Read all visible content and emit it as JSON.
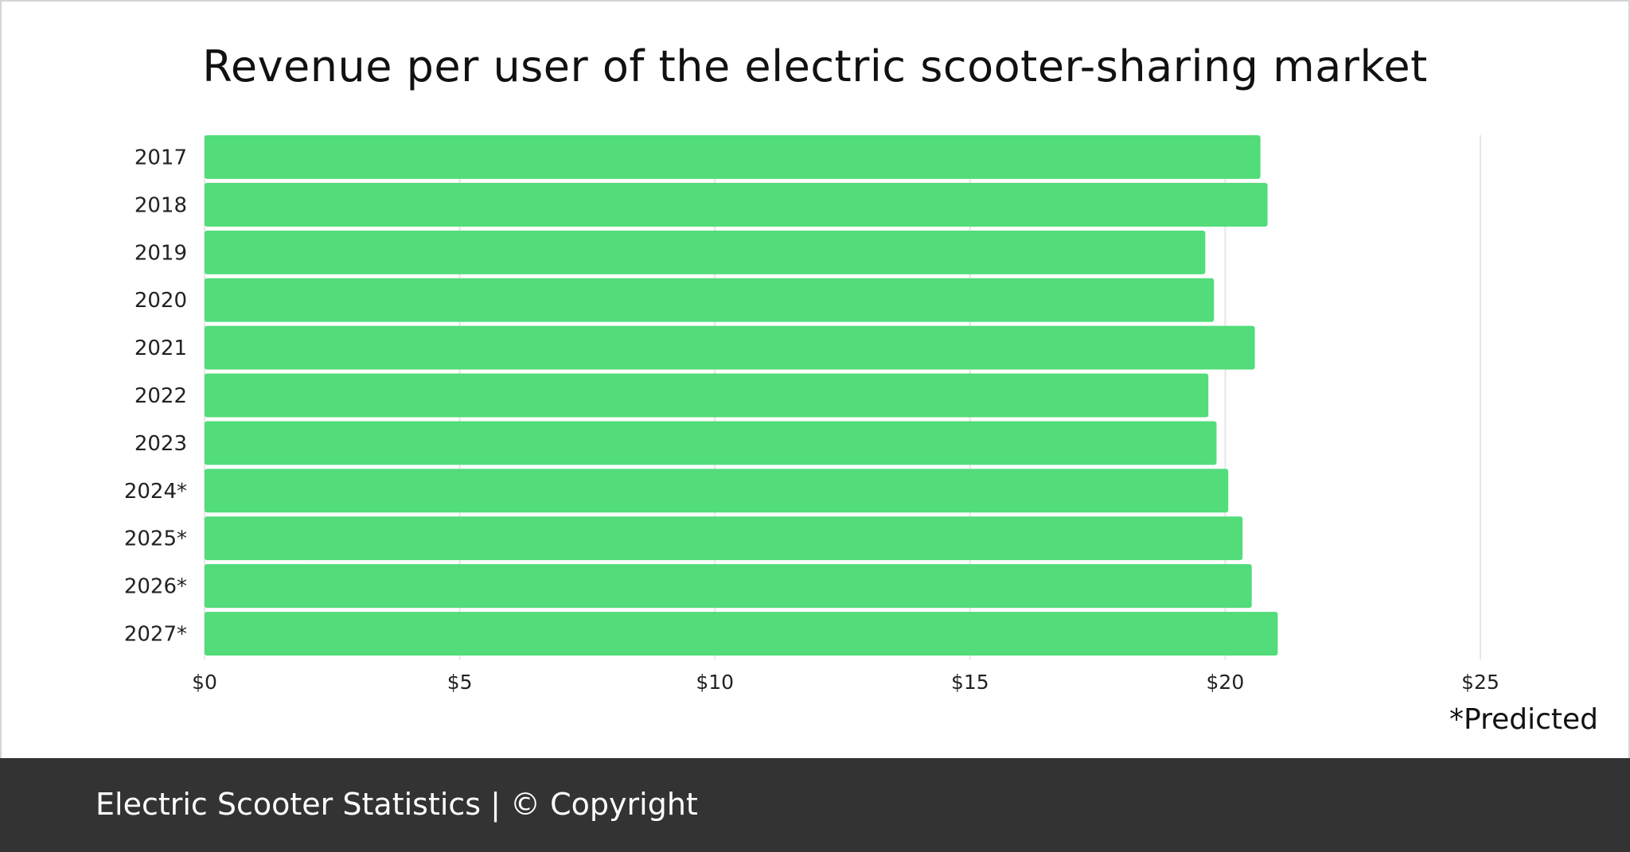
{
  "chart_data": {
    "type": "bar",
    "orientation": "horizontal",
    "title": "Revenue per user of the electric scooter-sharing market",
    "categories": [
      "2017",
      "2018",
      "2019",
      "2020",
      "2021",
      "2022",
      "2023",
      "2024*",
      "2025*",
      "2026*",
      "2027*"
    ],
    "values": [
      20.69,
      20.83,
      19.61,
      19.78,
      20.58,
      19.67,
      19.83,
      20.06,
      20.34,
      20.52,
      21.03
    ],
    "xlim": [
      0,
      25
    ],
    "xticks": [
      "$0",
      "$5",
      "$10",
      "$15",
      "$20",
      "$25"
    ],
    "xtick_values": [
      0,
      5,
      10,
      15,
      20,
      25
    ],
    "xlabel": "",
    "ylabel": "",
    "grid": "vertical",
    "bar_color": "#52dc7a",
    "annotation": "*Predicted"
  },
  "footer": {
    "text": "Electric Scooter Statistics | © Copyright",
    "background": "#333333"
  }
}
